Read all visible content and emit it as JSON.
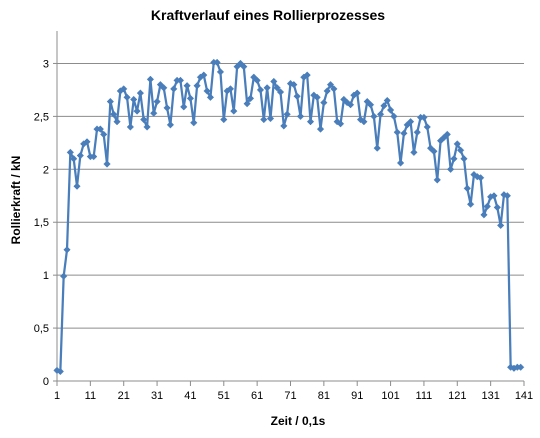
{
  "chart_data": {
    "type": "line",
    "title": "Kraftverlauf eines Rollierprozesses",
    "xlabel": "Zeit / 0,1s",
    "ylabel": "Rollierkraft / kN",
    "xlim": [
      1,
      141
    ],
    "ylim": [
      0,
      3.25
    ],
    "x_ticks": [
      1,
      11,
      21,
      31,
      41,
      51,
      61,
      71,
      81,
      91,
      101,
      111,
      121,
      131,
      141
    ],
    "x_tick_labels": [
      "1",
      "11",
      "21",
      "31",
      "41",
      "51",
      "61",
      "71",
      "81",
      "91",
      "101",
      "111",
      "121",
      "131",
      "141"
    ],
    "y_ticks": [
      0,
      0.5,
      1,
      1.5,
      2,
      2.5,
      3
    ],
    "y_tick_labels": [
      "0",
      "0,5",
      "1",
      "1,5",
      "2",
      "2,5",
      "3"
    ],
    "grid": true,
    "legend": "none",
    "line_color": "#4a7ebb",
    "series": [
      {
        "x": [
          1,
          2,
          3,
          4,
          5,
          6,
          7,
          8,
          9,
          10,
          11,
          12,
          13,
          14,
          15,
          16,
          17,
          18,
          19,
          20,
          21,
          22,
          23,
          24,
          25,
          26,
          27,
          28,
          29,
          30,
          31,
          32,
          33,
          34,
          35,
          36,
          37,
          38,
          39,
          40,
          41,
          42,
          43,
          44,
          45,
          46,
          47,
          48,
          49,
          50,
          51,
          52,
          53,
          54,
          55,
          56,
          57,
          58,
          59,
          60,
          61,
          62,
          63,
          64,
          65,
          66,
          67,
          68,
          69,
          70,
          71,
          72,
          73,
          74,
          75,
          76,
          77,
          78,
          79,
          80,
          81,
          82,
          83,
          84,
          85,
          86,
          87,
          88,
          89,
          90,
          91,
          92,
          93,
          94,
          95,
          96,
          97,
          98,
          99,
          100,
          101,
          102,
          103,
          104,
          105,
          106,
          107,
          108,
          109,
          110,
          111,
          112,
          113,
          114,
          115,
          116,
          117,
          118,
          119,
          120,
          121,
          122,
          123,
          124,
          125,
          126,
          127,
          128,
          129,
          130,
          131,
          132,
          133,
          134,
          135,
          136,
          137,
          138,
          139,
          140
        ],
        "values": [
          0.1,
          0.09,
          0.99,
          1.24,
          2.16,
          2.1,
          1.84,
          2.13,
          2.24,
          2.26,
          2.12,
          2.12,
          2.38,
          2.38,
          2.33,
          2.05,
          2.64,
          2.52,
          2.45,
          2.74,
          2.76,
          2.68,
          2.4,
          2.66,
          2.55,
          2.72,
          2.47,
          2.4,
          2.85,
          2.53,
          2.64,
          2.8,
          2.77,
          2.58,
          2.42,
          2.76,
          2.84,
          2.84,
          2.59,
          2.79,
          2.67,
          2.44,
          2.79,
          2.87,
          2.89,
          2.74,
          2.68,
          3.01,
          3.01,
          2.92,
          2.47,
          2.74,
          2.76,
          2.55,
          2.97,
          3.0,
          2.97,
          2.62,
          2.67,
          2.87,
          2.84,
          2.75,
          2.47,
          2.77,
          2.48,
          2.83,
          2.77,
          2.73,
          2.41,
          2.52,
          2.81,
          2.8,
          2.69,
          2.5,
          2.87,
          2.89,
          2.45,
          2.7,
          2.68,
          2.38,
          2.63,
          2.74,
          2.8,
          2.76,
          2.45,
          2.43,
          2.66,
          2.63,
          2.61,
          2.7,
          2.72,
          2.47,
          2.45,
          2.64,
          2.61,
          2.5,
          2.2,
          2.52,
          2.6,
          2.65,
          2.56,
          2.5,
          2.35,
          2.06,
          2.34,
          2.42,
          2.45,
          2.16,
          2.35,
          2.49,
          2.49,
          2.4,
          2.2,
          2.17,
          1.9,
          2.27,
          2.3,
          2.33,
          2.0,
          2.1,
          2.24,
          2.18,
          2.1,
          1.82,
          1.67,
          1.95,
          1.93,
          1.92,
          1.57,
          1.65,
          1.74,
          1.75,
          1.64,
          1.47,
          1.76,
          1.75,
          0.13,
          0.12,
          0.13,
          0.13
        ]
      }
    ]
  }
}
